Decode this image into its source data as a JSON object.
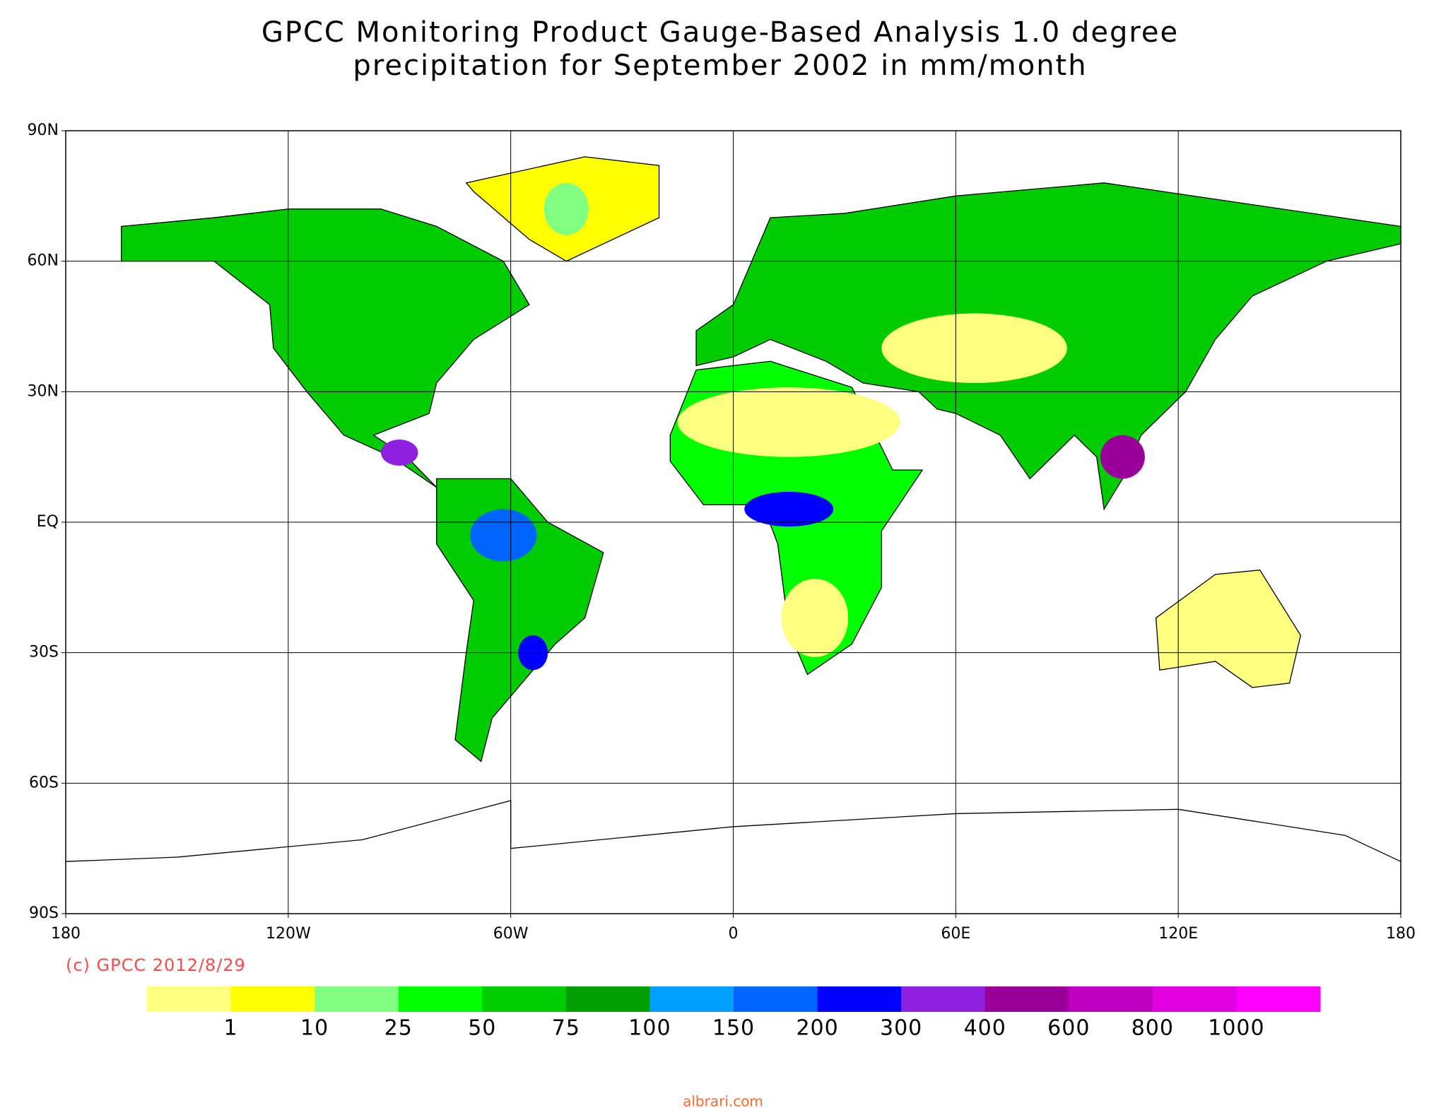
{
  "chart_data": {
    "type": "map",
    "title": "GPCC Monitoring Product Gauge-Based Analysis 1.0 degree",
    "subtitle": "precipitation for September  2002 in mm/month",
    "xlim": [
      -180,
      180
    ],
    "ylim": [
      -90,
      90
    ],
    "xticks": [
      {
        "value": -180,
        "label": "180"
      },
      {
        "value": -120,
        "label": "120W"
      },
      {
        "value": -60,
        "label": "60W"
      },
      0,
      {
        "value": 60,
        "label": "60E"
      },
      {
        "value": 120,
        "label": "120E"
      },
      180
    ],
    "yticks": [
      {
        "value": 90,
        "label": "90N"
      },
      {
        "value": 60,
        "label": "60N"
      },
      {
        "value": 30,
        "label": "30N"
      },
      {
        "value": 0,
        "label": "EQ"
      },
      {
        "value": -30,
        "label": "30S"
      },
      {
        "value": -60,
        "label": "60S"
      },
      {
        "value": -90,
        "label": "90S"
      }
    ],
    "grid": true,
    "colorbar": {
      "colors": [
        "#ffff80",
        "#ffff00",
        "#80ff80",
        "#00ff00",
        "#00cc00",
        "#009e00",
        "#00a0ff",
        "#0064ff",
        "#0000ff",
        "#9020e0",
        "#990099",
        "#c000c0",
        "#e000e0",
        "#ff00ff"
      ],
      "levels": [
        1,
        10,
        25,
        50,
        75,
        100,
        150,
        200,
        300,
        400,
        600,
        800,
        1000
      ]
    },
    "annotation": "(c) GPCC 2012/8/29",
    "watermark": "albrari.com"
  }
}
